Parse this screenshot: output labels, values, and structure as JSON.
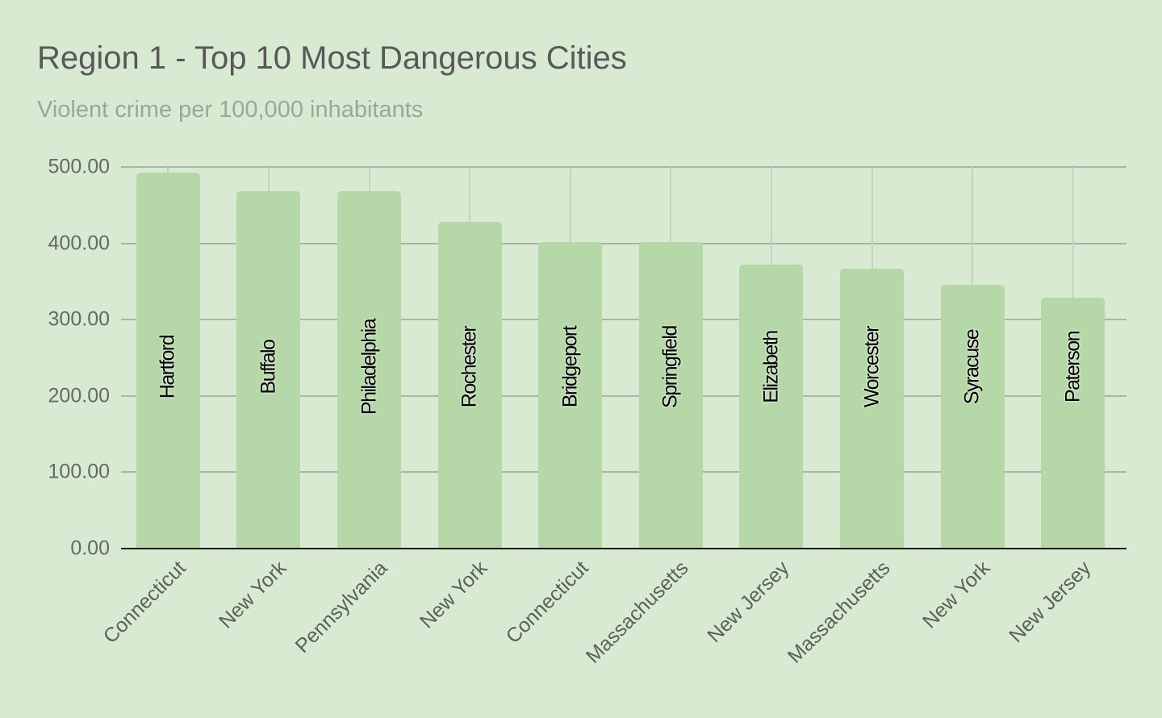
{
  "chart": {
    "title": "Region 1 - Top 10 Most Dangerous Cities",
    "subtitle": "Violent crime per 100,000 inhabitants",
    "colors": {
      "background": "#d9ead3",
      "bar": "#b6d7a8",
      "title": "#595959",
      "subtitle": "#9aa89a",
      "gridline": "#aab5a6"
    },
    "y_ticks": [
      "500.00",
      "400.00",
      "300.00",
      "200.00",
      "100.00",
      "0.00"
    ]
  },
  "chart_data": {
    "type": "bar",
    "title": "Region 1 - Top 10 Most Dangerous Cities",
    "subtitle": "Violent crime per 100,000 inhabitants",
    "xlabel": "",
    "ylabel": "",
    "ylim": [
      0,
      500
    ],
    "y_ticks": [
      0,
      100,
      200,
      300,
      400,
      500
    ],
    "grid": true,
    "legend": "none",
    "categories": [
      "Connecticut",
      "New York",
      "Pennsylvania",
      "New York",
      "Connecticut",
      "Massachusetts",
      "New Jersey",
      "Massachusetts",
      "New York",
      "New Jersey"
    ],
    "bar_labels": [
      "Hartford",
      "Buffalo",
      "Philadelphia",
      "Rochester",
      "Bridgeport",
      "Springfield",
      "Elizabeth",
      "Worcester",
      "Syracuse",
      "Paterson"
    ],
    "values": [
      493,
      468,
      468,
      428,
      402,
      402,
      372,
      367,
      346,
      329
    ]
  }
}
